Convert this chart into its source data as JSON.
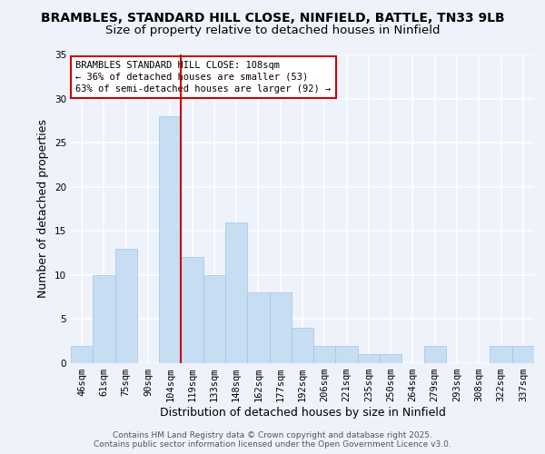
{
  "title1": "BRAMBLES, STANDARD HILL CLOSE, NINFIELD, BATTLE, TN33 9LB",
  "title2": "Size of property relative to detached houses in Ninfield",
  "xlabel": "Distribution of detached houses by size in Ninfield",
  "ylabel": "Number of detached properties",
  "bin_labels": [
    "46sqm",
    "61sqm",
    "75sqm",
    "90sqm",
    "104sqm",
    "119sqm",
    "133sqm",
    "148sqm",
    "162sqm",
    "177sqm",
    "192sqm",
    "206sqm",
    "221sqm",
    "235sqm",
    "250sqm",
    "264sqm",
    "279sqm",
    "293sqm",
    "308sqm",
    "322sqm",
    "337sqm"
  ],
  "bar_heights": [
    2,
    10,
    13,
    0,
    28,
    12,
    10,
    16,
    8,
    8,
    4,
    2,
    2,
    1,
    1,
    0,
    2,
    0,
    0,
    2,
    2
  ],
  "bar_color": "#c7ddf2",
  "bar_edge_color": "#a0c4e8",
  "vline_x_index": 4,
  "vline_color": "#cc0000",
  "ylim": [
    0,
    35
  ],
  "yticks": [
    0,
    5,
    10,
    15,
    20,
    25,
    30,
    35
  ],
  "annotation_line1": "BRAMBLES STANDARD HILL CLOSE: 108sqm",
  "annotation_line2": "← 36% of detached houses are smaller (53)",
  "annotation_line3": "63% of semi-detached houses are larger (92) →",
  "annotation_box_color": "#ffffff",
  "annotation_border_color": "#cc0000",
  "footer1": "Contains HM Land Registry data © Crown copyright and database right 2025.",
  "footer2": "Contains public sector information licensed under the Open Government Licence v3.0.",
  "bg_color": "#eef2fa",
  "grid_color": "#ffffff",
  "title_fontsize": 10,
  "subtitle_fontsize": 9.5,
  "axis_label_fontsize": 9,
  "tick_fontsize": 7.5,
  "annotation_fontsize": 7.5,
  "footer_fontsize": 6.5
}
